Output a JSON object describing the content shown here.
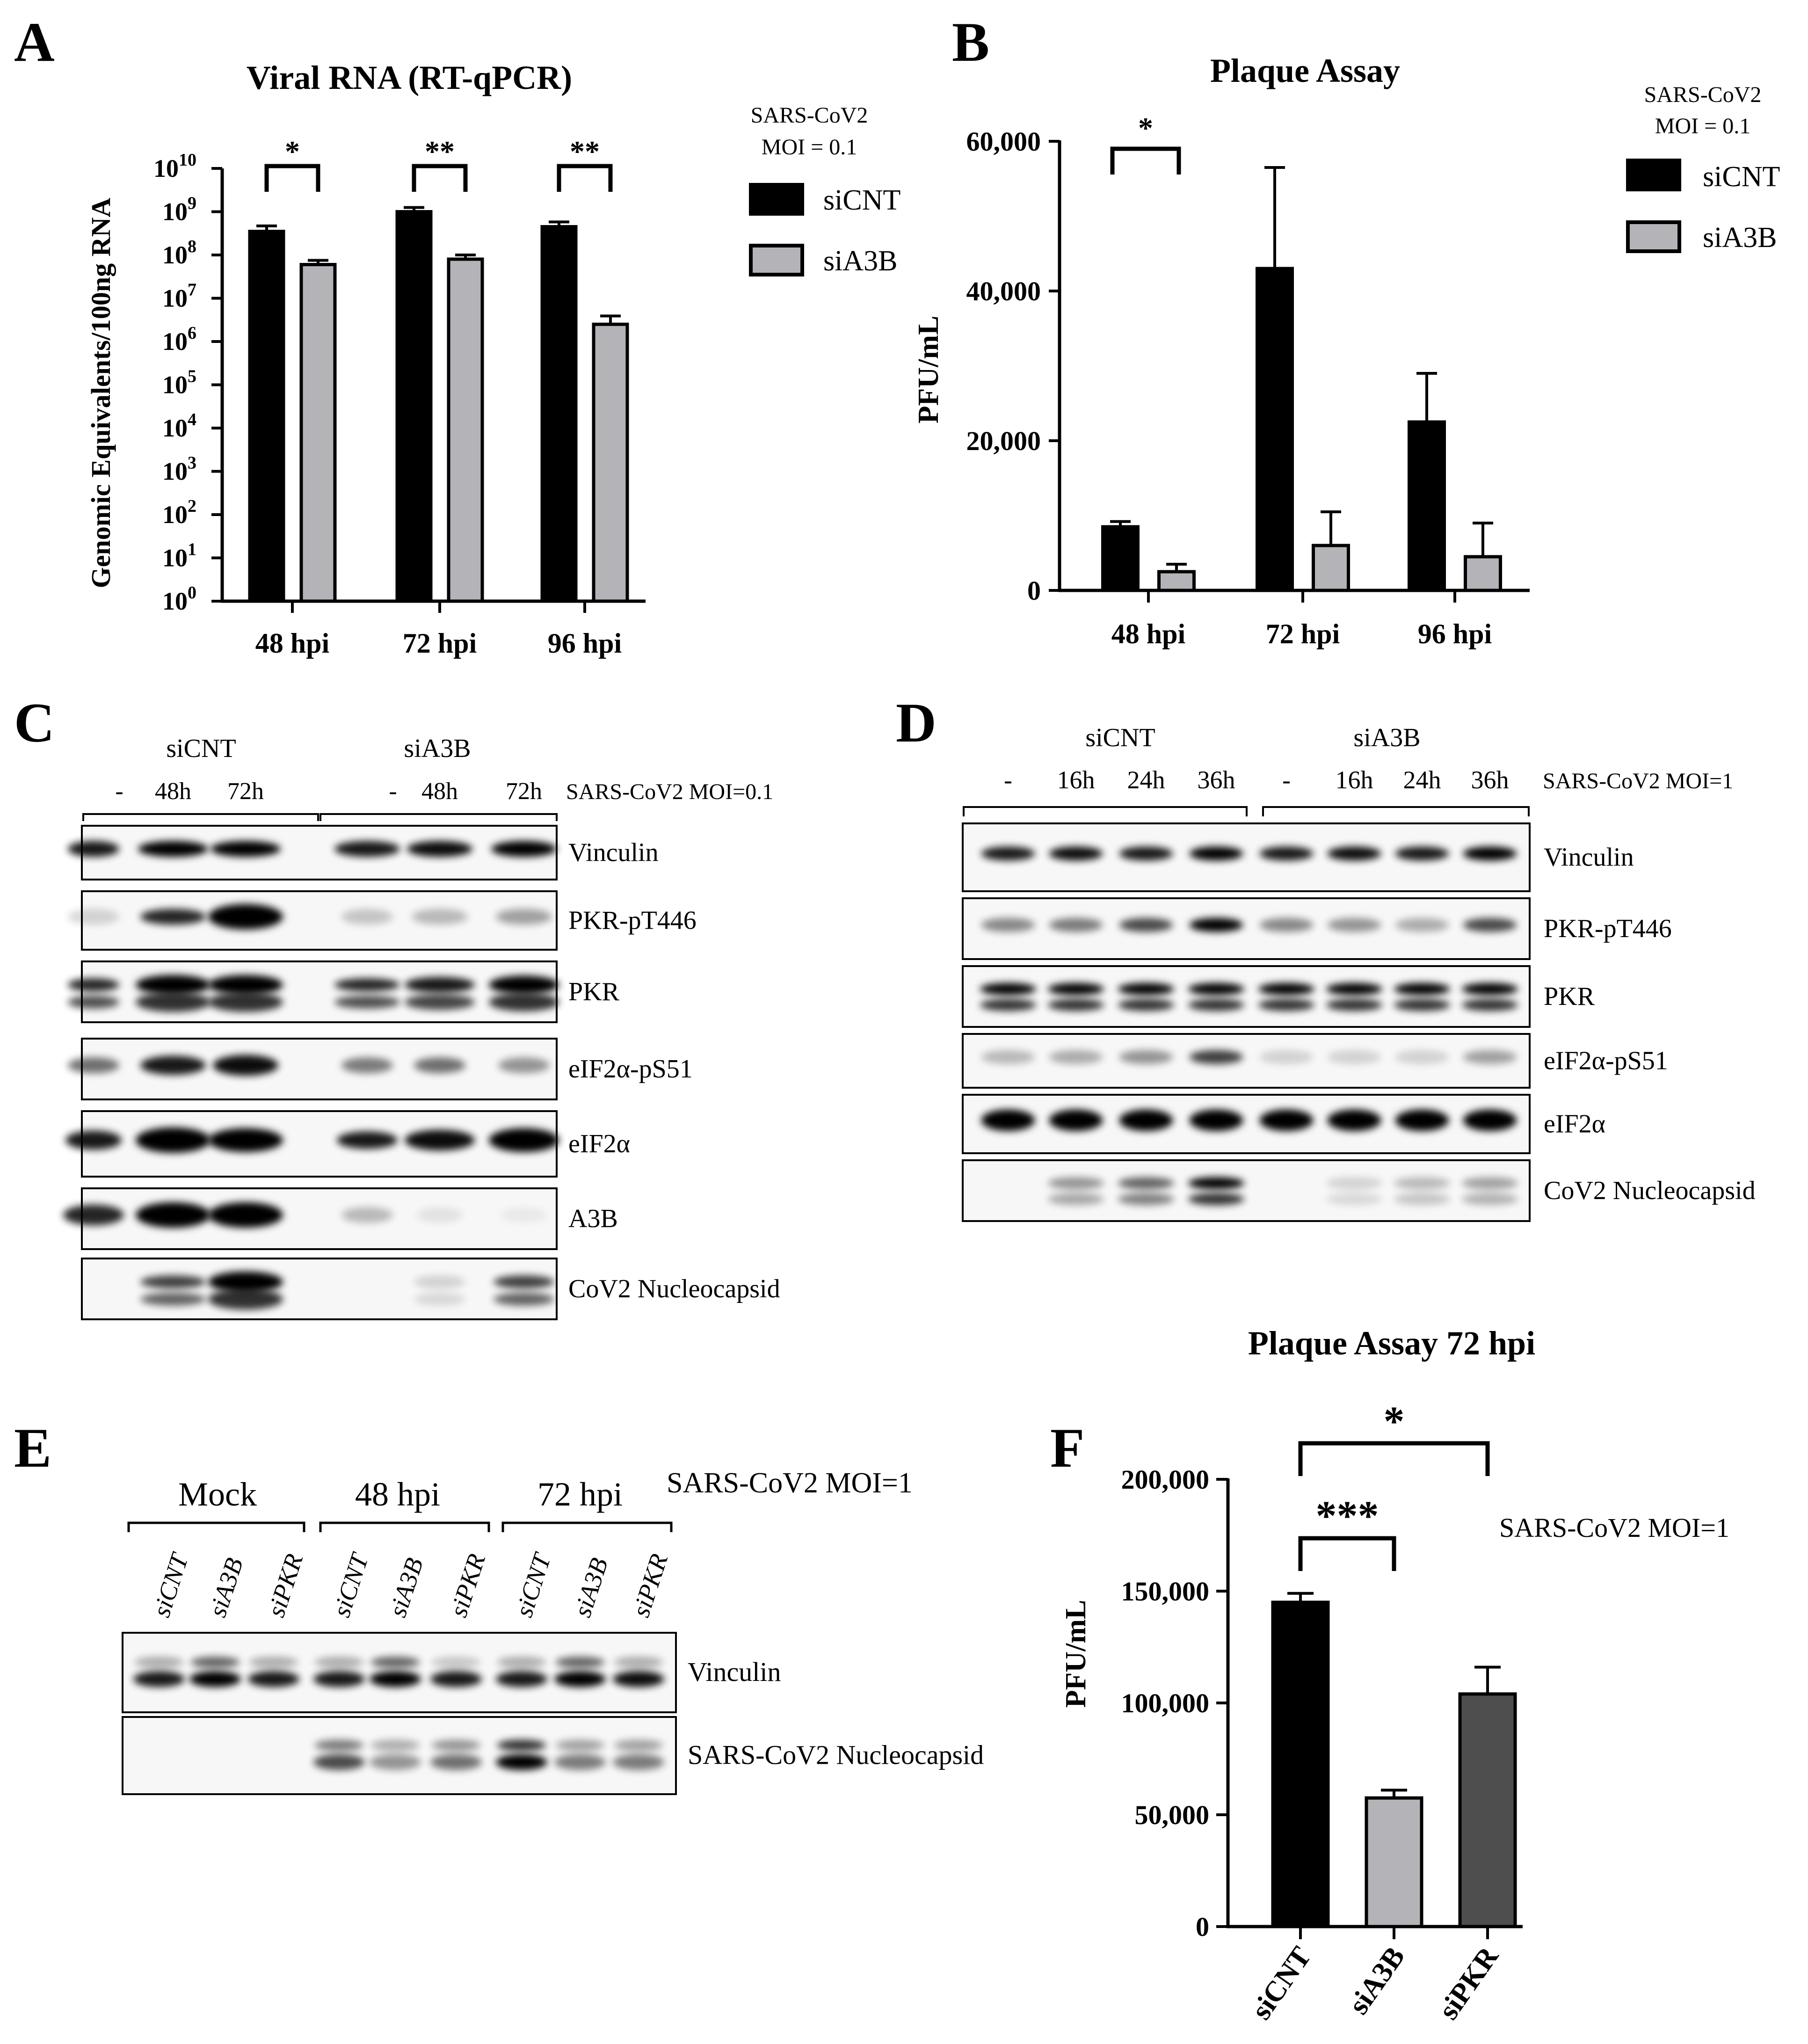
{
  "colors": {
    "black": "#000000",
    "gray": "#b4b4b8",
    "dark_gray": "#4e4e4e",
    "blot_bg": "#f7f7f7"
  },
  "panels": {
    "A": "A",
    "B": "B",
    "C": "C",
    "D": "D",
    "E": "E",
    "F": "F"
  },
  "panelA": {
    "title": "Viral RNA (RT-qPCR)",
    "ylabel": "Genomic Equivalents/100ng RNA",
    "legend": {
      "title_line1": "SARS-CoV2",
      "title_line2": "MOI = 0.1",
      "items": [
        "siCNT",
        "siA3B"
      ]
    },
    "sig": [
      "*",
      "**",
      "**"
    ]
  },
  "panelB": {
    "title": "Plaque Assay",
    "ylabel": "PFU/mL",
    "legend": {
      "title_line1": "SARS-CoV2",
      "title_line2": "MOI = 0.1",
      "items": [
        "siCNT",
        "siA3B"
      ]
    },
    "sig": [
      "*"
    ]
  },
  "panelF": {
    "title": "Plaque Assay 72 hpi",
    "ylabel": "PFU/mL",
    "annotation": "SARS-CoV2 MOI=1",
    "sig": [
      "***",
      "*"
    ]
  },
  "chart_data": [
    {
      "type": "bar",
      "title": "Viral RNA (RT-qPCR)",
      "ylabel": "Genomic Equivalents/100ng RNA",
      "yscale": "log",
      "ylim": [
        1,
        10000000000
      ],
      "yticks": [
        "10^0",
        "10^1",
        "10^2",
        "10^3",
        "10^4",
        "10^5",
        "10^6",
        "10^7",
        "10^8",
        "10^9",
        "10^10"
      ],
      "categories": [
        "48 hpi",
        "72 hpi",
        "96 hpi"
      ],
      "series": [
        {
          "name": "siCNT",
          "values": [
            350000000,
            1000000000,
            450000000
          ],
          "errors": [
            120000000,
            250000000,
            130000000
          ]
        },
        {
          "name": "siA3B",
          "values": [
            60000000,
            80000000,
            2500000
          ],
          "errors": [
            15000000,
            20000000,
            1400000
          ]
        }
      ],
      "legend_title": "SARS-CoV2 MOI = 0.1",
      "significance": [
        "*",
        "**",
        "**"
      ]
    },
    {
      "type": "bar",
      "title": "Plaque Assay",
      "ylabel": "PFU/mL",
      "ylim": [
        0,
        60000
      ],
      "yticks": [
        "0",
        "20,000",
        "40,000",
        "60,000"
      ],
      "categories": [
        "48 hpi",
        "72 hpi",
        "96 hpi"
      ],
      "series": [
        {
          "name": "siCNT",
          "values": [
            8500,
            43000,
            22500
          ],
          "errors": [
            700,
            13500,
            6500
          ]
        },
        {
          "name": "siA3B",
          "values": [
            2500,
            6000,
            4500
          ],
          "errors": [
            1000,
            4500,
            4500
          ]
        }
      ],
      "legend_title": "SARS-CoV2 MOI = 0.1",
      "significance": [
        "*"
      ]
    },
    {
      "type": "bar",
      "title": "Plaque Assay 72 hpi",
      "ylabel": "PFU/mL",
      "ylim": [
        0,
        200000
      ],
      "yticks": [
        "0",
        "50,000",
        "100,000",
        "150,000",
        "200,000"
      ],
      "categories": [
        "siCNT",
        "siA3B",
        "siPKR"
      ],
      "values": [
        145000,
        57500,
        104000
      ],
      "errors": [
        4000,
        3500,
        12000
      ],
      "annotation": "SARS-CoV2 MOI=1",
      "significance": [
        "***",
        "*"
      ]
    }
  ],
  "blotC": {
    "groups": [
      "siCNT",
      "siA3B"
    ],
    "lanes": [
      "-",
      "48h",
      "72h",
      "-",
      "48h",
      "72h"
    ],
    "condition": "SARS-CoV2 MOI=0.1",
    "rows": [
      "Vinculin",
      "PKR-pT446",
      "PKR",
      "eIF2α-pS51",
      "eIF2α",
      "A3B",
      "CoV2 Nucleocapsid"
    ]
  },
  "blotD": {
    "groups": [
      "siCNT",
      "siA3B"
    ],
    "lanes": [
      "-",
      "16h",
      "24h",
      "36h",
      "-",
      "16h",
      "24h",
      "36h"
    ],
    "condition": "SARS-CoV2 MOI=1",
    "rows": [
      "Vinculin",
      "PKR-pT446",
      "PKR",
      "eIF2α-pS51",
      "eIF2α",
      "CoV2 Nucleocapsid"
    ]
  },
  "blotE": {
    "groups": [
      "Mock",
      "48 hpi",
      "72 hpi"
    ],
    "lanes": [
      "siCNT",
      "siA3B",
      "siPKR",
      "siCNT",
      "siA3B",
      "siPKR",
      "siCNT",
      "siA3B",
      "siPKR"
    ],
    "condition": "SARS-CoV2 MOI=1",
    "rows": [
      "Vinculin",
      "SARS-CoV2 Nucleocapsid"
    ]
  }
}
